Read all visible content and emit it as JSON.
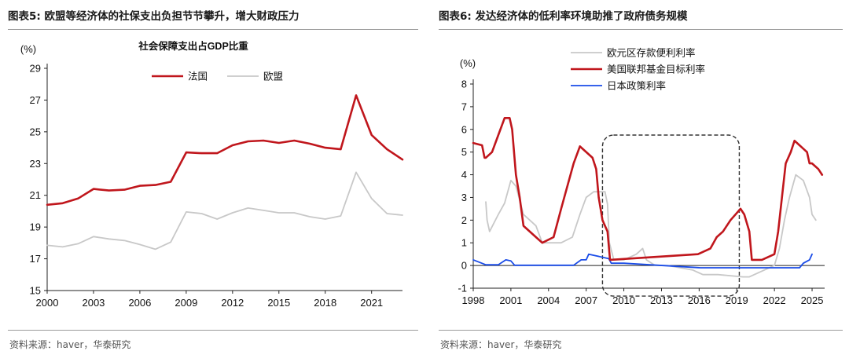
{
  "figures": [
    {
      "title": "图表5:  欧盟等经济体的社保支出负担节节攀升，增大财政压力",
      "source": "资料来源：haver，华泰研究"
    },
    {
      "title": "图表6:  发达经济体的低利率环境助推了政府债务规模",
      "source": "资料来源：haver，华泰研究"
    }
  ],
  "colors": {
    "france": "#c0161c",
    "eu": "#c8c8c8",
    "euro": "#c8c8c8",
    "us": "#c0161c",
    "japan": "#1a4ce8",
    "rule": "#9a9a9a"
  },
  "chart_data": [
    {
      "type": "line",
      "title": "社会保障支出占GDP比重",
      "unit": "(%)",
      "xlim": [
        2000,
        2023
      ],
      "ylim": [
        15,
        29
      ],
      "yticks": [
        "15",
        "17",
        "19",
        "21",
        "23",
        "25",
        "27",
        "29"
      ],
      "xticks": [
        "2000",
        "2003",
        "2006",
        "2009",
        "2012",
        "2015",
        "2018",
        "2021"
      ],
      "legend": "top-center",
      "series": [
        {
          "name": "法国",
          "color": "#c0161c",
          "x": [
            2000,
            2001,
            2002,
            2003,
            2004,
            2005,
            2006,
            2007,
            2008,
            2009,
            2010,
            2011,
            2012,
            2013,
            2014,
            2015,
            2016,
            2017,
            2018,
            2019,
            2020,
            2021,
            2022,
            2023
          ],
          "values": [
            20.4,
            20.5,
            20.8,
            21.4,
            21.3,
            21.35,
            21.6,
            21.65,
            21.85,
            23.7,
            23.65,
            23.65,
            24.15,
            24.4,
            24.45,
            24.3,
            24.45,
            24.25,
            24.0,
            23.9,
            27.3,
            24.8,
            23.9,
            23.25
          ]
        },
        {
          "name": "欧盟",
          "color": "#c8c8c8",
          "x": [
            2000,
            2001,
            2002,
            2003,
            2004,
            2005,
            2006,
            2007,
            2008,
            2009,
            2010,
            2011,
            2012,
            2013,
            2014,
            2015,
            2016,
            2017,
            2018,
            2019,
            2020,
            2021,
            2022,
            2023
          ],
          "values": [
            17.85,
            17.75,
            17.95,
            18.4,
            18.25,
            18.15,
            17.9,
            17.6,
            18.05,
            19.95,
            19.85,
            19.5,
            19.9,
            20.2,
            20.05,
            19.9,
            19.9,
            19.65,
            19.5,
            19.7,
            22.45,
            20.8,
            19.85,
            19.75
          ]
        }
      ]
    },
    {
      "type": "line",
      "title": "",
      "unit": "(%)",
      "xlim": [
        1998,
        2026
      ],
      "ylim": [
        -1,
        8
      ],
      "yticks": [
        "-1",
        "0",
        "1",
        "2",
        "3",
        "4",
        "5",
        "6",
        "7",
        "8"
      ],
      "xticks": [
        "1998",
        "2001",
        "2004",
        "2007",
        "2010",
        "2013",
        "2016",
        "2019",
        "2022",
        "2025"
      ],
      "legend": "top-center",
      "annotation": "dashed rounded box around 2008-2019 (low-rate period)",
      "series": [
        {
          "name": "欧元区存款便利利率",
          "color": "#c8c8c8",
          "x": [
            1999.0,
            1999.1,
            1999.3,
            2000.0,
            2000.5,
            2001.0,
            2001.4,
            2002.0,
            2003.0,
            2003.5,
            2005.0,
            2005.9,
            2006.5,
            2007.0,
            2007.6,
            2008.5,
            2008.7,
            2008.85,
            2009.2,
            2010.0,
            2011.0,
            2011.5,
            2011.8,
            2012.5,
            2013.5,
            2014.5,
            2015.5,
            2016.3,
            2017.5,
            2019.5,
            2020.0,
            2022.0,
            2022.4,
            2022.8,
            2023.2,
            2023.7,
            2024.3,
            2024.8,
            2025.0,
            2025.3
          ],
          "values": [
            2.8,
            2.0,
            1.5,
            2.25,
            2.75,
            3.75,
            3.5,
            2.25,
            1.75,
            1.0,
            1.0,
            1.25,
            2.25,
            3.0,
            3.25,
            3.25,
            2.7,
            1.0,
            0.25,
            0.25,
            0.5,
            0.75,
            0.25,
            0.0,
            0.0,
            -0.1,
            -0.2,
            -0.4,
            -0.4,
            -0.5,
            -0.5,
            0.0,
            0.75,
            2.0,
            3.0,
            4.0,
            3.75,
            3.0,
            2.25,
            2.0
          ]
        },
        {
          "name": "美国联邦基金目标利率",
          "color": "#c0161c",
          "x": [
            1998.0,
            1998.7,
            1998.9,
            1999.0,
            1999.5,
            2000.0,
            2000.5,
            2000.9,
            2001.1,
            2001.4,
            2001.7,
            2002.0,
            2003.0,
            2003.5,
            2004.4,
            2005.0,
            2006.0,
            2006.5,
            2007.5,
            2007.8,
            2008.0,
            2008.3,
            2008.7,
            2008.9,
            2015.9,
            2016.9,
            2017.4,
            2017.9,
            2018.5,
            2019.3,
            2019.6,
            2020.0,
            2020.2,
            2021.0,
            2022.0,
            2022.3,
            2022.6,
            2022.9,
            2023.3,
            2023.6,
            2024.6,
            2024.8,
            2025.0,
            2025.5,
            2025.8
          ],
          "values": [
            5.4,
            5.3,
            4.75,
            4.75,
            5.0,
            5.75,
            6.5,
            6.5,
            6.0,
            4.0,
            3.0,
            1.75,
            1.25,
            1.0,
            1.25,
            2.5,
            4.5,
            5.25,
            4.75,
            4.25,
            3.0,
            2.0,
            1.5,
            0.25,
            0.5,
            0.75,
            1.25,
            1.5,
            2.0,
            2.5,
            2.25,
            1.5,
            0.25,
            0.25,
            0.5,
            1.5,
            3.0,
            4.5,
            5.0,
            5.5,
            5.0,
            4.5,
            4.5,
            4.25,
            4.0
          ]
        },
        {
          "name": "日本政策利率",
          "color": "#1a4ce8",
          "x": [
            1998.0,
            1999.0,
            2000.0,
            2000.6,
            2001.0,
            2001.3,
            2002.0,
            2006.0,
            2006.6,
            2007.0,
            2007.2,
            2008.8,
            2009.0,
            2010.0,
            2016.1,
            2023.0,
            2024.0,
            2024.3,
            2024.8,
            2025.0
          ],
          "values": [
            0.25,
            0.03,
            0.03,
            0.25,
            0.2,
            0.01,
            0.01,
            0.01,
            0.25,
            0.25,
            0.5,
            0.3,
            0.1,
            0.1,
            -0.1,
            -0.1,
            -0.1,
            0.1,
            0.25,
            0.5
          ]
        }
      ]
    }
  ]
}
